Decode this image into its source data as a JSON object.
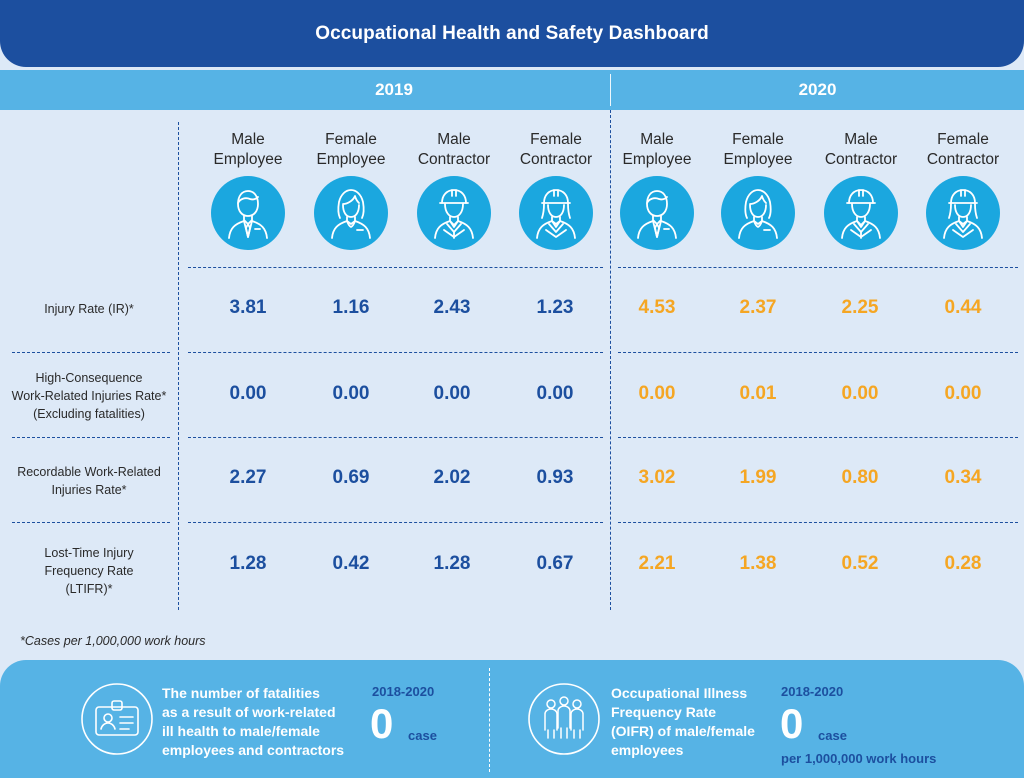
{
  "title": "Occupational Health and Safety Dashboard",
  "years": [
    "2019",
    "2020"
  ],
  "columns": [
    {
      "line1": "Male",
      "line2": "Employee",
      "icon": "male-employee-icon"
    },
    {
      "line1": "Female",
      "line2": "Employee",
      "icon": "female-employee-icon"
    },
    {
      "line1": "Male",
      "line2": "Contractor",
      "icon": "male-contractor-icon"
    },
    {
      "line1": "Female",
      "line2": "Contractor",
      "icon": "female-contractor-icon"
    },
    {
      "line1": "Male",
      "line2": "Employee",
      "icon": "male-employee-icon"
    },
    {
      "line1": "Female",
      "line2": "Employee",
      "icon": "female-employee-icon"
    },
    {
      "line1": "Male",
      "line2": "Contractor",
      "icon": "male-contractor-icon"
    },
    {
      "line1": "Female",
      "line2": "Contractor",
      "icon": "female-contractor-icon"
    }
  ],
  "rows": [
    {
      "label": [
        "Injury Rate (IR)*"
      ],
      "values": [
        "3.81",
        "1.16",
        "2.43",
        "1.23",
        "4.53",
        "2.37",
        "2.25",
        "0.44"
      ]
    },
    {
      "label": [
        "High-Consequence",
        "Work-Related Injuries Rate*",
        "(Excluding fatalities)"
      ],
      "values": [
        "0.00",
        "0.00",
        "0.00",
        "0.00",
        "0.00",
        "0.01",
        "0.00",
        "0.00"
      ]
    },
    {
      "label": [
        "Recordable Work-Related",
        "Injuries Rate*"
      ],
      "values": [
        "2.27",
        "0.69",
        "2.02",
        "0.93",
        "3.02",
        "1.99",
        "0.80",
        "0.34"
      ]
    },
    {
      "label": [
        "Lost-Time Injury",
        "Frequency Rate",
        "(LTIFR)*"
      ],
      "values": [
        "1.28",
        "0.42",
        "1.28",
        "0.67",
        "2.21",
        "1.38",
        "0.52",
        "0.28"
      ]
    }
  ],
  "footnote": "*Cases per 1,000,000 work hours",
  "bottom": {
    "left": {
      "text": [
        "The number of fatalities",
        "as a result of work-related",
        "ill health to male/female",
        "employees and contractors"
      ],
      "period": "2018-2020",
      "value": "0",
      "unit": "case",
      "icon": "id-card-icon"
    },
    "right": {
      "text": [
        "Occupational Illness",
        "Frequency Rate",
        "(OIFR) of male/female",
        "employees"
      ],
      "period": "2018-2020",
      "value": "0",
      "unit": "case",
      "unit2": "per 1,000,000 work hours",
      "icon": "workers-group-icon"
    }
  },
  "colors": {
    "header": "#1c4f9f",
    "year_bar": "#56b3e5",
    "value_2019": "#1c4f9f",
    "value_2020": "#f5a623",
    "background": "#dde9f7"
  },
  "chart_data": {
    "type": "table",
    "title": "Occupational Health and Safety Dashboard",
    "categories": [
      "Male Employee",
      "Female Employee",
      "Male Contractor",
      "Female Contractor"
    ],
    "series": [
      {
        "name": "2019",
        "rows": {
          "Injury Rate (IR)*": [
            3.81,
            1.16,
            2.43,
            1.23
          ],
          "High-Consequence Work-Related Injuries Rate* (Excluding fatalities)": [
            0.0,
            0.0,
            0.0,
            0.0
          ],
          "Recordable Work-Related Injuries Rate*": [
            2.27,
            0.69,
            2.02,
            0.93
          ],
          "Lost-Time Injury Frequency Rate (LTIFR)*": [
            1.28,
            0.42,
            1.28,
            0.67
          ]
        }
      },
      {
        "name": "2020",
        "rows": {
          "Injury Rate (IR)*": [
            4.53,
            2.37,
            2.25,
            0.44
          ],
          "High-Consequence Work-Related Injuries Rate* (Excluding fatalities)": [
            0.0,
            0.01,
            0.0,
            0.0
          ],
          "Recordable Work-Related Injuries Rate*": [
            3.02,
            1.99,
            0.8,
            0.34
          ],
          "Lost-Time Injury Frequency Rate (LTIFR)*": [
            2.21,
            1.38,
            0.52,
            0.28
          ]
        }
      }
    ]
  }
}
